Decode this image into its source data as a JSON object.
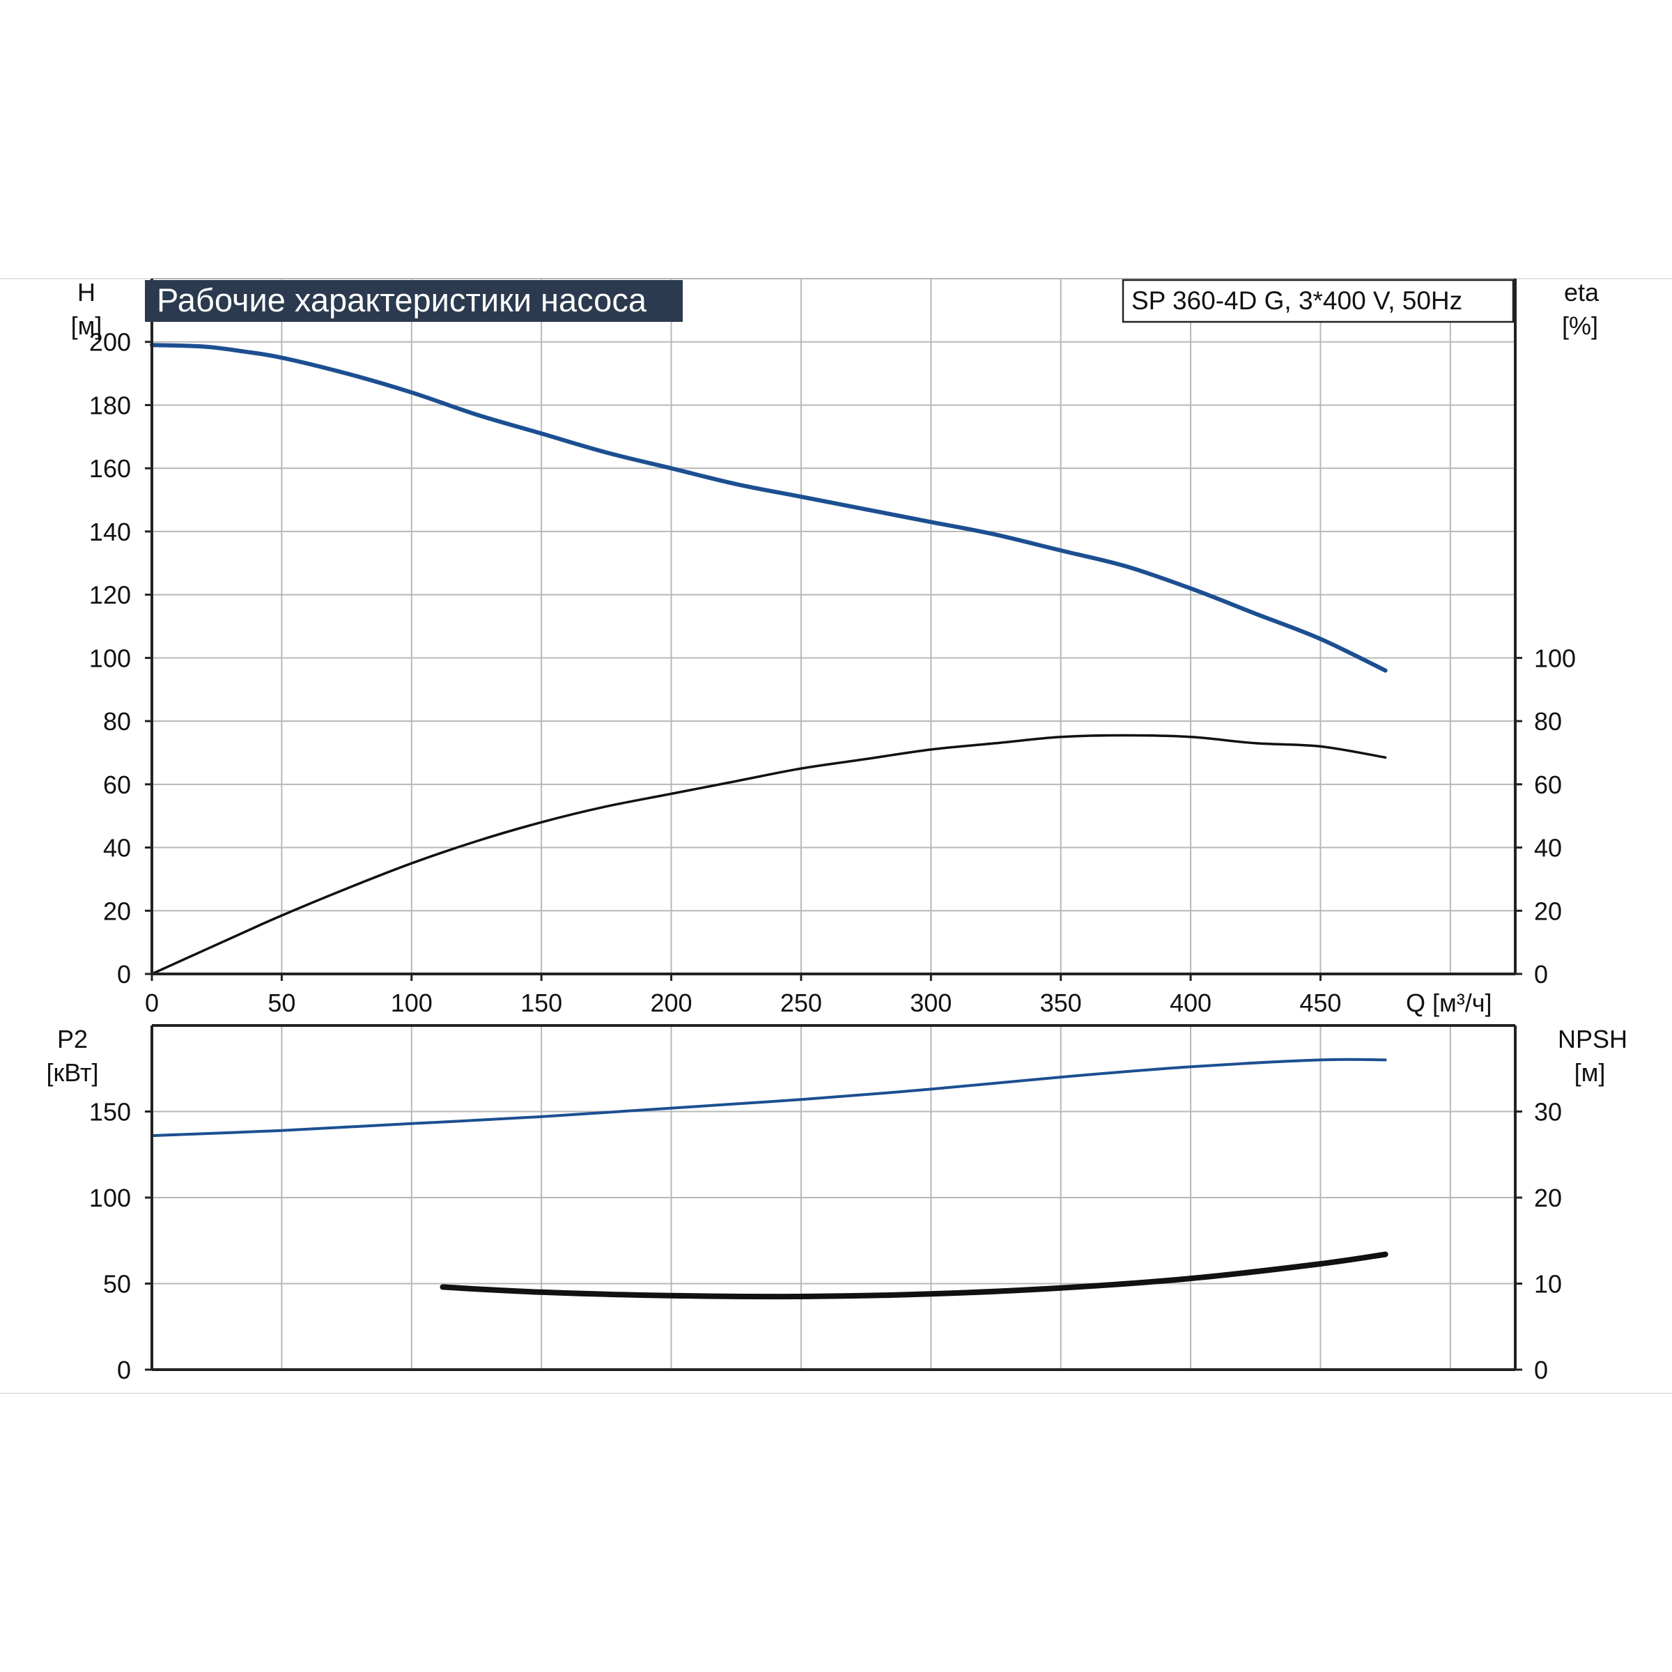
{
  "colors": {
    "accent": "#1c4f91",
    "curve_dark": "#111111",
    "title_bg": "#2b3a4e",
    "grid": "#b8b8b8"
  },
  "chart_data": [
    {
      "type": "line",
      "title": "Рабочие характеристики насоса",
      "model": "SP 360-4D G, 3*400 V, 50Hz",
      "xlabel": "Q [м³/ч]",
      "xlim": [
        0,
        525
      ],
      "x_ticks": [
        "0",
        "50",
        "100",
        "150",
        "200",
        "250",
        "300",
        "350",
        "400",
        "450"
      ],
      "left_axis": {
        "label_top": "H",
        "label_unit": "[м]",
        "ylim": [
          0,
          220
        ],
        "ticks": [
          "0",
          "20",
          "40",
          "60",
          "80",
          "100",
          "120",
          "140",
          "160",
          "180",
          "200"
        ]
      },
      "right_axis": {
        "label_top": "eta",
        "label_unit": "[%]",
        "ylim": [
          0,
          220
        ],
        "ticks": [
          "0",
          "20",
          "40",
          "60",
          "80",
          "100"
        ]
      },
      "grid": true,
      "series": [
        {
          "id": "head",
          "color": "#1c4f91",
          "axis": "left",
          "x": [
            0,
            20,
            35,
            50,
            75,
            100,
            125,
            150,
            175,
            200,
            225,
            250,
            275,
            300,
            325,
            350,
            375,
            400,
            425,
            450,
            475
          ],
          "y": [
            199,
            198.5,
            197,
            195,
            190,
            184,
            177,
            171,
            165,
            160,
            155,
            151,
            147,
            143,
            139,
            134,
            129,
            122,
            114,
            106,
            96
          ]
        },
        {
          "id": "efficiency",
          "color": "#111111",
          "axis": "right",
          "x": [
            0,
            35,
            50,
            75,
            100,
            125,
            150,
            175,
            200,
            225,
            250,
            275,
            300,
            325,
            350,
            375,
            400,
            425,
            450,
            475
          ],
          "y": [
            0,
            13,
            18.5,
            27,
            35,
            42,
            48,
            53,
            57,
            61,
            65,
            68,
            71,
            73,
            75,
            75.5,
            75,
            73,
            72,
            68.5
          ]
        }
      ]
    },
    {
      "type": "line",
      "xlim": [
        0,
        525
      ],
      "left_axis": {
        "label_top": "P2",
        "label_unit": "[кВт]",
        "ylim": [
          0,
          200
        ],
        "ticks": [
          "0",
          "50",
          "100",
          "150"
        ]
      },
      "right_axis": {
        "label_top": "NPSH",
        "label_unit": "[м]",
        "ylim": [
          0,
          40
        ],
        "ticks": [
          "0",
          "10",
          "20",
          "30"
        ]
      },
      "grid": true,
      "series": [
        {
          "id": "power",
          "color": "#1c4f91",
          "axis": "left",
          "x": [
            0,
            50,
            100,
            150,
            200,
            250,
            300,
            350,
            400,
            450,
            475
          ],
          "y": [
            136,
            139,
            143,
            147,
            152,
            157,
            163,
            170,
            176,
            180,
            180
          ]
        },
        {
          "id": "npsh",
          "color": "#111111",
          "axis": "right",
          "x": [
            112,
            150,
            200,
            250,
            300,
            350,
            400,
            450,
            475
          ],
          "y": [
            9.6,
            9.0,
            8.6,
            8.5,
            8.8,
            9.5,
            10.6,
            12.3,
            13.4
          ]
        }
      ]
    }
  ]
}
